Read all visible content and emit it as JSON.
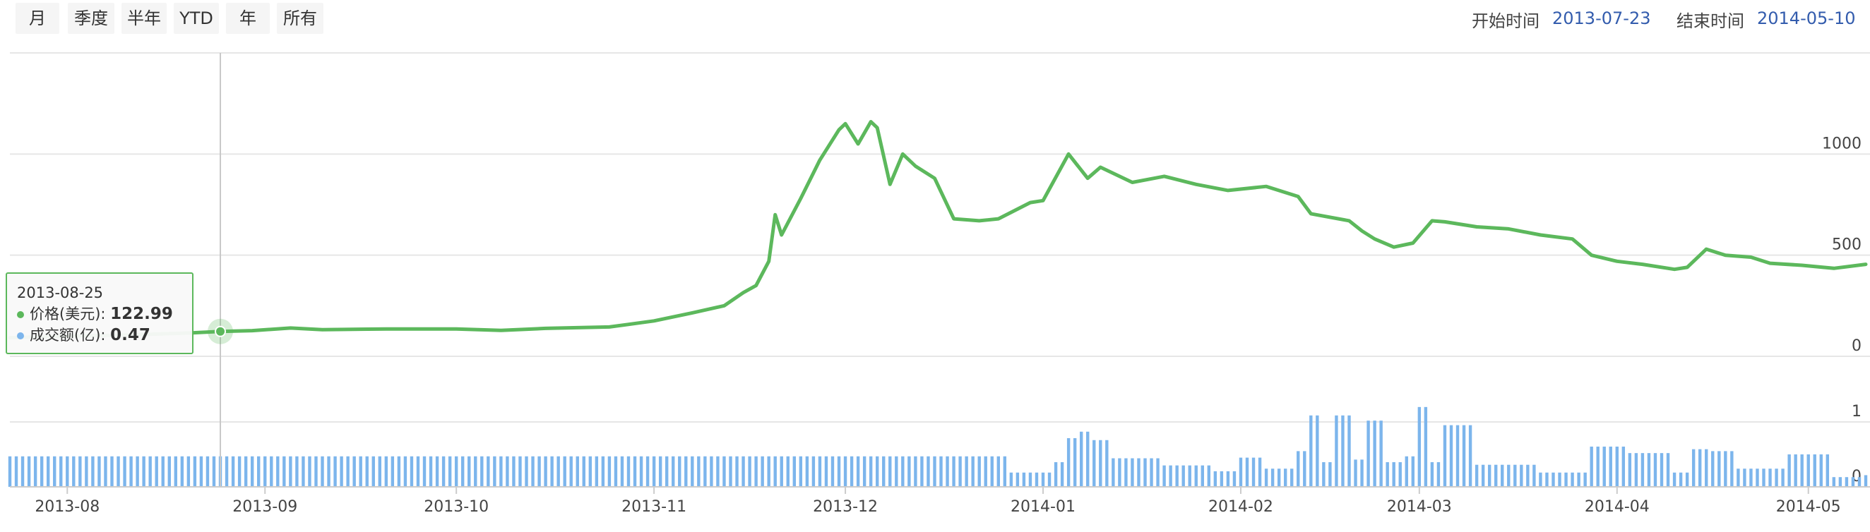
{
  "range_buttons": [
    "月",
    "季度",
    "半年",
    "YTD",
    "年",
    "所有"
  ],
  "date_range": {
    "start_label": "开始时间",
    "start_value": "2013-07-23",
    "end_label": "结束时间",
    "end_value": "2014-05-10"
  },
  "tooltip": {
    "date": "2013-08-25",
    "price_label": "价格(美元): ",
    "price_value": "122.99",
    "volume_label": "成交额(亿): ",
    "volume_value": "0.47"
  },
  "colors": {
    "price_line": "#5cb85c",
    "volume_bar": "#7cb5ec",
    "grid": "#e6e6e6"
  },
  "chart_data": {
    "type": "line",
    "x_range": [
      "2013-07-23",
      "2014-05-10"
    ],
    "x_ticks": [
      "2013-08",
      "2013-09",
      "2013-10",
      "2013-11",
      "2013-12",
      "2014-01",
      "2014-02",
      "2014-03",
      "2014-04",
      "2014-05"
    ],
    "price_axis": {
      "ylim": [
        0,
        1500
      ],
      "ticks": [
        "0",
        "500",
        "1000"
      ]
    },
    "volume_axis": {
      "ylim": [
        0,
        1
      ],
      "ticks": [
        "0",
        "1"
      ]
    },
    "series": [
      {
        "name": "价格(美元)",
        "points": [
          [
            "2013-07-23",
            92
          ],
          [
            "2013-08-01",
            100
          ],
          [
            "2013-08-10",
            105
          ],
          [
            "2013-08-20",
            115
          ],
          [
            "2013-08-25",
            122.99
          ],
          [
            "2013-08-30",
            127
          ],
          [
            "2013-09-05",
            140
          ],
          [
            "2013-09-10",
            132
          ],
          [
            "2013-09-20",
            135
          ],
          [
            "2013-10-01",
            135
          ],
          [
            "2013-10-08",
            128
          ],
          [
            "2013-10-15",
            138
          ],
          [
            "2013-10-25",
            145
          ],
          [
            "2013-11-01",
            175
          ],
          [
            "2013-11-07",
            215
          ],
          [
            "2013-11-12",
            250
          ],
          [
            "2013-11-15",
            315
          ],
          [
            "2013-11-17",
            350
          ],
          [
            "2013-11-19",
            470
          ],
          [
            "2013-11-20",
            700
          ],
          [
            "2013-11-21",
            600
          ],
          [
            "2013-11-24",
            780
          ],
          [
            "2013-11-27",
            970
          ],
          [
            "2013-11-30",
            1120
          ],
          [
            "2013-12-01",
            1150
          ],
          [
            "2013-12-03",
            1050
          ],
          [
            "2013-12-05",
            1160
          ],
          [
            "2013-12-06",
            1130
          ],
          [
            "2013-12-08",
            850
          ],
          [
            "2013-12-10",
            1000
          ],
          [
            "2013-12-12",
            940
          ],
          [
            "2013-12-15",
            880
          ],
          [
            "2013-12-18",
            680
          ],
          [
            "2013-12-22",
            670
          ],
          [
            "2013-12-25",
            680
          ],
          [
            "2013-12-30",
            760
          ],
          [
            "2014-01-01",
            770
          ],
          [
            "2014-01-05",
            1000
          ],
          [
            "2014-01-08",
            880
          ],
          [
            "2014-01-10",
            935
          ],
          [
            "2014-01-15",
            860
          ],
          [
            "2014-01-20",
            890
          ],
          [
            "2014-01-25",
            850
          ],
          [
            "2014-01-30",
            820
          ],
          [
            "2014-02-05",
            840
          ],
          [
            "2014-02-10",
            790
          ],
          [
            "2014-02-12",
            705
          ],
          [
            "2014-02-18",
            670
          ],
          [
            "2014-02-20",
            620
          ],
          [
            "2014-02-22",
            580
          ],
          [
            "2014-02-25",
            540
          ],
          [
            "2014-02-28",
            560
          ],
          [
            "2014-03-03",
            670
          ],
          [
            "2014-03-05",
            665
          ],
          [
            "2014-03-10",
            640
          ],
          [
            "2014-03-15",
            630
          ],
          [
            "2014-03-20",
            600
          ],
          [
            "2014-03-25",
            580
          ],
          [
            "2014-03-28",
            500
          ],
          [
            "2014-04-01",
            470
          ],
          [
            "2014-04-05",
            455
          ],
          [
            "2014-04-10",
            430
          ],
          [
            "2014-04-12",
            440
          ],
          [
            "2014-04-15",
            530
          ],
          [
            "2014-04-18",
            500
          ],
          [
            "2014-04-22",
            490
          ],
          [
            "2014-04-25",
            460
          ],
          [
            "2014-04-30",
            450
          ],
          [
            "2014-05-05",
            435
          ],
          [
            "2014-05-10",
            455
          ]
        ]
      },
      {
        "name": "成交额(亿)",
        "type": "bar",
        "points": [
          [
            "2013-07-23",
            0.47
          ],
          [
            "2013-12-26",
            0.47
          ],
          [
            "2013-12-27",
            0.22
          ],
          [
            "2013-12-31",
            0.22
          ],
          [
            "2014-01-03",
            0.38
          ],
          [
            "2014-01-05",
            0.75
          ],
          [
            "2014-01-07",
            0.85
          ],
          [
            "2014-01-09",
            0.72
          ],
          [
            "2014-01-12",
            0.44
          ],
          [
            "2014-01-20",
            0.33
          ],
          [
            "2014-01-28",
            0.24
          ],
          [
            "2014-02-01",
            0.45
          ],
          [
            "2014-02-05",
            0.28
          ],
          [
            "2014-02-10",
            0.55
          ],
          [
            "2014-02-12",
            1.1
          ],
          [
            "2014-02-14",
            0.38
          ],
          [
            "2014-02-16",
            1.1
          ],
          [
            "2014-02-19",
            0.42
          ],
          [
            "2014-02-21",
            1.02
          ],
          [
            "2014-02-24",
            0.38
          ],
          [
            "2014-02-27",
            0.47
          ],
          [
            "2014-03-01",
            1.23
          ],
          [
            "2014-03-03",
            0.38
          ],
          [
            "2014-03-05",
            0.95
          ],
          [
            "2014-03-10",
            0.34
          ],
          [
            "2014-03-20",
            0.22
          ],
          [
            "2014-03-28",
            0.62
          ],
          [
            "2014-04-03",
            0.52
          ],
          [
            "2014-04-10",
            0.22
          ],
          [
            "2014-04-13",
            0.58
          ],
          [
            "2014-04-16",
            0.55
          ],
          [
            "2014-04-20",
            0.28
          ],
          [
            "2014-04-28",
            0.5
          ],
          [
            "2014-05-05",
            0.15
          ],
          [
            "2014-05-10",
            0.18
          ]
        ]
      }
    ]
  }
}
